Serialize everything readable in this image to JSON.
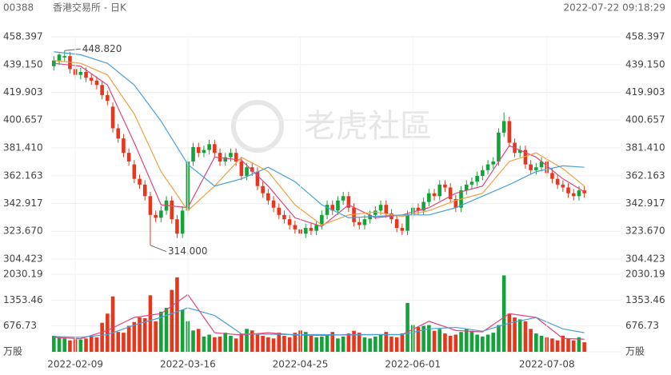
{
  "header": {
    "code": "00388",
    "name": "香港交易所 - 日K",
    "time": "2022-07-22 09:18:29"
  },
  "watermark": "老虎社區",
  "chart_data": [
    {
      "type": "candlestick",
      "up_color": "#13a33a",
      "down_color": "#e8361c",
      "ylim": [
        304.423,
        458.397
      ],
      "yticks": [
        458.397,
        {
          "value": 439.15,
          "label": "439.150"
        },
        419.903,
        400.657,
        {
          "value": 381.41,
          "label": "381.410"
        },
        362.163,
        342.917,
        {
          "value": 323.67,
          "label": "323.670"
        },
        304.423
      ],
      "categories": [
        null,
        null,
        null,
        null,
        "2022-02-09",
        null,
        null,
        null,
        null,
        null,
        null,
        null,
        null,
        null,
        null,
        null,
        null,
        null,
        null,
        null,
        null,
        null,
        null,
        null,
        null,
        "2022-03-16",
        null,
        null,
        null,
        null,
        null,
        null,
        null,
        null,
        null,
        null,
        null,
        null,
        null,
        null,
        null,
        null,
        null,
        null,
        null,
        null,
        "2022-04-25",
        null,
        null,
        null,
        null,
        null,
        null,
        null,
        null,
        null,
        null,
        null,
        null,
        null,
        null,
        null,
        null,
        null,
        null,
        null,
        null,
        "2022-06-01",
        null,
        null,
        null,
        null,
        null,
        null,
        null,
        null,
        null,
        null,
        null,
        null,
        null,
        null,
        null,
        null,
        null,
        null,
        null,
        null,
        null,
        null,
        null,
        null,
        "2022-07-08",
        null,
        null,
        null,
        null,
        null,
        null,
        null
      ],
      "open": [
        438,
        442,
        444,
        445,
        436,
        432,
        434,
        430,
        428,
        425,
        418,
        410,
        395,
        388,
        378,
        370,
        360,
        356,
        348,
        335,
        333,
        338,
        345,
        332,
        322,
        338,
        372,
        382,
        378,
        380,
        384,
        378,
        372,
        375,
        378,
        372,
        362,
        368,
        365,
        355,
        350,
        345,
        340,
        335,
        332,
        328,
        325,
        322,
        326,
        324,
        328,
        335,
        342,
        338,
        345,
        348,
        340,
        330,
        328,
        332,
        335,
        338,
        342,
        336,
        332,
        326,
        324,
        335,
        340,
        338,
        344,
        350,
        348,
        356,
        354,
        346,
        340,
        352,
        356,
        358,
        362,
        366,
        370,
        372,
        392,
        400,
        385,
        378,
        380,
        370,
        366,
        368,
        372,
        364,
        360,
        356,
        354,
        350,
        348,
        352
      ],
      "high": [
        445,
        447,
        448.82,
        448,
        439,
        437,
        437,
        433,
        431,
        428,
        421,
        413,
        398,
        391,
        381,
        373,
        363,
        359,
        351,
        338,
        341,
        348,
        348,
        335,
        341,
        375,
        385,
        385,
        383,
        387,
        387,
        381,
        378,
        381,
        381,
        375,
        371,
        371,
        368,
        358,
        353,
        348,
        343,
        338,
        335,
        331,
        328,
        329,
        329,
        331,
        338,
        345,
        345,
        348,
        351,
        351,
        343,
        333,
        335,
        338,
        341,
        345,
        345,
        339,
        335,
        329,
        338,
        343,
        343,
        347,
        353,
        353,
        359,
        359,
        357,
        349,
        355,
        359,
        361,
        365,
        369,
        373,
        375,
        395,
        406,
        403,
        388,
        383,
        383,
        373,
        371,
        375,
        375,
        367,
        363,
        359,
        357,
        353,
        355,
        355
      ],
      "low": [
        435,
        439,
        441,
        433,
        429,
        429,
        427,
        425,
        422,
        415,
        411,
        392,
        385,
        375,
        369,
        357,
        353,
        345,
        314,
        330,
        330,
        335,
        329,
        319,
        319,
        335,
        369,
        375,
        375,
        377,
        375,
        369,
        369,
        372,
        369,
        359,
        359,
        362,
        352,
        347,
        342,
        337,
        332,
        329,
        325,
        322,
        319,
        319,
        321,
        321,
        325,
        332,
        335,
        335,
        342,
        337,
        327,
        325,
        325,
        329,
        332,
        335,
        333,
        329,
        323,
        321,
        321,
        332,
        335,
        335,
        341,
        345,
        345,
        351,
        343,
        337,
        337,
        349,
        353,
        355,
        359,
        363,
        367,
        369,
        389,
        382,
        375,
        375,
        367,
        363,
        363,
        365,
        361,
        357,
        353,
        351,
        347,
        345,
        345,
        347
      ],
      "close": [
        442,
        446,
        445,
        436,
        432,
        434,
        430,
        428,
        425,
        418,
        414,
        395,
        388,
        378,
        372,
        360,
        356,
        348,
        335,
        333,
        338,
        345,
        332,
        322,
        338,
        372,
        382,
        378,
        380,
        384,
        378,
        372,
        375,
        378,
        372,
        362,
        368,
        365,
        355,
        350,
        345,
        340,
        335,
        332,
        328,
        325,
        322,
        326,
        324,
        328,
        335,
        342,
        338,
        345,
        348,
        340,
        330,
        328,
        332,
        335,
        338,
        342,
        336,
        332,
        326,
        324,
        335,
        340,
        338,
        344,
        350,
        348,
        356,
        354,
        346,
        340,
        352,
        356,
        358,
        362,
        366,
        370,
        372,
        392,
        400,
        385,
        378,
        380,
        370,
        366,
        368,
        372,
        364,
        360,
        356,
        354,
        350,
        348,
        352,
        350
      ],
      "series": [
        {
          "color": "#e0457b",
          "x": [
            0,
            5,
            10,
            15,
            20,
            25,
            30,
            35,
            40,
            45,
            50,
            55,
            60,
            65,
            70,
            75,
            80,
            85,
            90,
            95,
            99
          ],
          "values": [
            440,
            438,
            425,
            385,
            342,
            340,
            375,
            373,
            355,
            333,
            327,
            342,
            333,
            335,
            340,
            350,
            355,
            383,
            375,
            360,
            351
          ]
        },
        {
          "color": "#f0a040",
          "x": [
            0,
            5,
            10,
            15,
            20,
            25,
            30,
            35,
            40,
            45,
            50,
            55,
            60,
            65,
            70,
            75,
            80,
            85,
            90,
            95,
            99
          ],
          "values": [
            442,
            440,
            432,
            405,
            365,
            338,
            355,
            375,
            365,
            342,
            328,
            335,
            337,
            334,
            338,
            345,
            350,
            372,
            378,
            367,
            355
          ]
        },
        {
          "color": "#4a9fd8",
          "x": [
            0,
            5,
            10,
            15,
            20,
            25,
            30,
            35,
            40,
            45,
            50,
            55,
            60,
            65,
            70,
            75,
            80,
            85,
            90,
            95,
            99
          ],
          "values": [
            448,
            446,
            440,
            425,
            400,
            370,
            355,
            360,
            368,
            358,
            342,
            333,
            334,
            335,
            335,
            340,
            348,
            356,
            365,
            369,
            368
          ]
        }
      ],
      "annotations": [
        {
          "label": "448.820",
          "value": 448.82
        },
        {
          "label": "314.000",
          "value": 314
        }
      ],
      "grid": true
    },
    {
      "type": "bar",
      "ylim": [
        0,
        2030.19
      ],
      "yticks": [
        {
          "value": 0,
          "label": "万股"
        },
        676.73,
        1353.46,
        2030.19
      ],
      "values": [
        420,
        380,
        350,
        300,
        330,
        320,
        350,
        400,
        380,
        760,
        1000,
        1450,
        520,
        500,
        680,
        780,
        900,
        880,
        1480,
        800,
        1050,
        1150,
        1620,
        1950,
        1100,
        800,
        560,
        600,
        400,
        450,
        380,
        400,
        500,
        420,
        350,
        480,
        600,
        560,
        450,
        420,
        380,
        350,
        500,
        420,
        380,
        500,
        560,
        520,
        420,
        380,
        400,
        450,
        520,
        350,
        400,
        480,
        550,
        500,
        380,
        350,
        400,
        450,
        520,
        400,
        380,
        480,
        1280,
        700,
        650,
        680,
        700,
        550,
        600,
        480,
        420,
        450,
        520,
        600,
        550,
        450,
        400,
        450,
        500,
        700,
        2000,
        1000,
        900,
        850,
        800,
        600,
        480,
        420,
        380,
        350,
        300,
        420,
        350,
        300,
        380,
        250
      ],
      "series": [
        {
          "color": "#e0457b",
          "x": [
            0,
            5,
            10,
            15,
            20,
            25,
            30,
            35,
            40,
            45,
            50,
            55,
            60,
            65,
            70,
            75,
            80,
            85,
            90,
            95,
            99
          ],
          "values": [
            380,
            340,
            560,
            900,
            1000,
            1500,
            500,
            440,
            500,
            440,
            430,
            450,
            450,
            450,
            800,
            560,
            520,
            1000,
            900,
            350,
            330
          ]
        },
        {
          "color": "#4a9fd8",
          "x": [
            0,
            5,
            10,
            15,
            20,
            25,
            30,
            35,
            40,
            45,
            50,
            55,
            60,
            65,
            70,
            75,
            80,
            85,
            90,
            95,
            99
          ],
          "values": [
            400,
            380,
            450,
            700,
            900,
            1150,
            950,
            470,
            460,
            450,
            450,
            440,
            450,
            450,
            600,
            640,
            540,
            750,
            900,
            600,
            500
          ]
        }
      ]
    }
  ]
}
